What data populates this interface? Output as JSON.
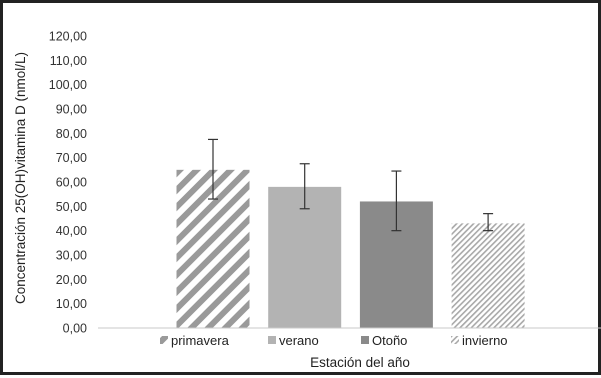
{
  "chart_data": {
    "type": "bar",
    "title": "",
    "xlabel": "Estación del año",
    "ylabel": "Concentración 25(OH)vitamina D (nmol/L)",
    "ylim": [
      0,
      120
    ],
    "ytick_step": 10,
    "ytick_labels": [
      "0,00",
      "10,00",
      "20,00",
      "30,00",
      "40,00",
      "50,00",
      "60,00",
      "70,00",
      "80,00",
      "90,00",
      "100,00",
      "110,00",
      "120,00"
    ],
    "categories": [
      "primavera",
      "verano",
      "Otoño",
      "invierno"
    ],
    "values": [
      65,
      58,
      52,
      43
    ],
    "error_low": [
      53,
      49,
      40,
      40
    ],
    "error_high": [
      77.5,
      67.5,
      64.5,
      47
    ],
    "grid": false,
    "legend_position": "bottom",
    "series_styles": [
      {
        "fill": "diagonal-wide-stripes",
        "color": "#9a9a9a"
      },
      {
        "fill": "solid",
        "color": "#b3b3b3"
      },
      {
        "fill": "solid",
        "color": "#8a8a8a"
      },
      {
        "fill": "diagonal-fine-stripes",
        "color": "#a8a8a8"
      }
    ]
  }
}
